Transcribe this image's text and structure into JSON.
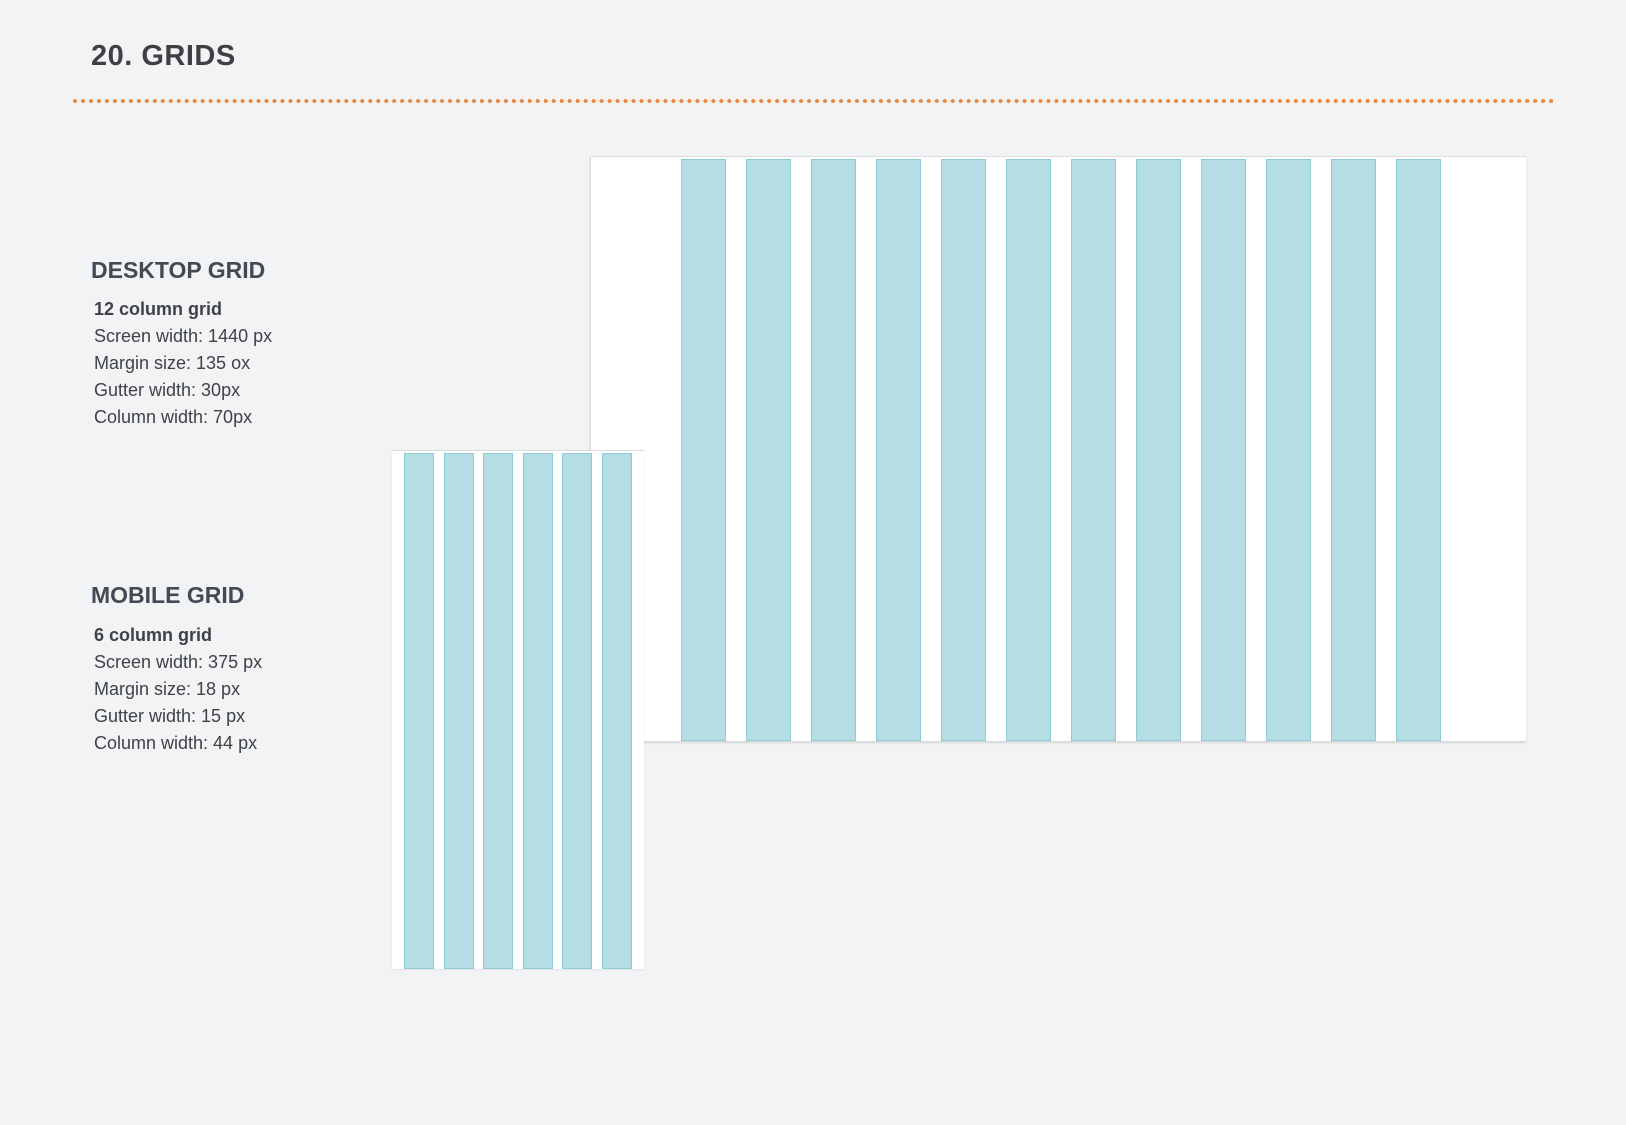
{
  "page": {
    "title": "20. GRIDS",
    "divider_color": "#ef8a3c",
    "background_color": "#f2f3f4"
  },
  "desktop": {
    "heading": "DESKTOP GRID",
    "specs": [
      "12 column grid",
      "Screen width: 1440 px",
      "Margin size: 135 ox",
      "Gutter width: 30px",
      "Column width: 70px"
    ],
    "columns": 12
  },
  "mobile": {
    "heading": "MOBILE GRID",
    "specs": [
      "6 column grid",
      "Screen width: 375 px",
      "Margin size: 18 px",
      "Gutter width: 15 px",
      "Column width: 44 px"
    ],
    "columns": 6
  },
  "colors": {
    "column_fill": "#b5dee4",
    "column_border": "#8fcbd5",
    "frame": "#ffffff"
  }
}
